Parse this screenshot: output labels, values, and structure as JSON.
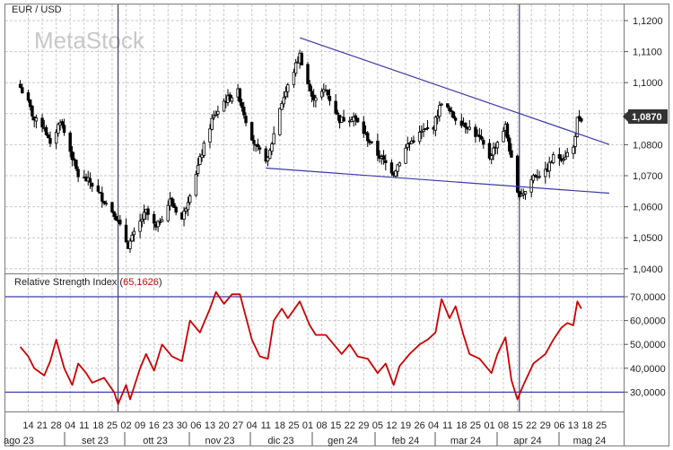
{
  "watermark": "MetaStock",
  "colors": {
    "candle": "#000000",
    "trendline": "#3a3aa6",
    "rsi_line": "#cc0000",
    "rsi_value": "#cc0000",
    "rsi_bands": "#3a3aa6",
    "grid": "#c9c9c9",
    "last_price_bg": "#333333"
  },
  "chart_data": [
    {
      "type": "candlestick",
      "title": "EUR / USD",
      "ylim": [
        1.04,
        1.12
      ],
      "y_ticks": [
        "1,1200",
        "1,1100",
        "1,1000",
        "1,0900",
        "1,0800",
        "1,0700",
        "1,0600",
        "1,0500",
        "1,0400"
      ],
      "last_price_label": "1,0870",
      "grid": true,
      "x_tick_labels": [
        "14",
        "21",
        "28",
        "04",
        "11",
        "18",
        "25",
        "02",
        "09",
        "16",
        "23",
        "30",
        "06",
        "13",
        "20",
        "27",
        "04",
        "11",
        "18",
        "25",
        "01",
        "08",
        "15",
        "22",
        "29",
        "05",
        "12",
        "19",
        "26",
        "04",
        "11",
        "18",
        "25",
        "01",
        "08",
        "15",
        "22",
        "29",
        "06",
        "13",
        "18",
        "25"
      ],
      "month_labels": [
        "ago 23",
        "set 23",
        "ott 23",
        "nov 23",
        "dic 23",
        "gen 24",
        "feb 24",
        "mar 24",
        "apr 24",
        "mag 24"
      ],
      "close_path": [
        [
          "2023-08-10",
          1.0985
        ],
        [
          "2023-08-14",
          1.0935
        ],
        [
          "2023-08-17",
          1.088
        ],
        [
          "2023-08-22",
          1.086
        ],
        [
          "2023-08-25",
          1.0795
        ],
        [
          "2023-08-30",
          1.088
        ],
        [
          "2023-09-04",
          1.078
        ],
        [
          "2023-09-08",
          1.07
        ],
        [
          "2023-09-14",
          1.068
        ],
        [
          "2023-09-21",
          1.062
        ],
        [
          "2023-09-26",
          1.058
        ],
        [
          "2023-10-03",
          1.0475
        ],
        [
          "2023-10-09",
          1.055
        ],
        [
          "2023-10-12",
          1.0585
        ],
        [
          "2023-10-17",
          1.053
        ],
        [
          "2023-10-24",
          1.062
        ],
        [
          "2023-10-30",
          1.056
        ],
        [
          "2023-11-06",
          1.071
        ],
        [
          "2023-11-14",
          1.088
        ],
        [
          "2023-11-20",
          1.094
        ],
        [
          "2023-11-27",
          1.097
        ],
        [
          "2023-12-01",
          1.088
        ],
        [
          "2023-12-06",
          1.079
        ],
        [
          "2023-12-12",
          1.075
        ],
        [
          "2023-12-18",
          1.092
        ],
        [
          "2023-12-28",
          1.109
        ],
        [
          "2024-01-03",
          1.095
        ],
        [
          "2024-01-10",
          1.0975
        ],
        [
          "2024-01-17",
          1.088
        ],
        [
          "2024-01-24",
          1.089
        ],
        [
          "2024-01-31",
          1.082
        ],
        [
          "2024-02-05",
          1.077
        ],
        [
          "2024-02-13",
          1.071
        ],
        [
          "2024-02-20",
          1.08
        ],
        [
          "2024-02-27",
          1.084
        ],
        [
          "2024-03-04",
          1.086
        ],
        [
          "2024-03-08",
          1.094
        ],
        [
          "2024-03-14",
          1.089
        ],
        [
          "2024-03-21",
          1.086
        ],
        [
          "2024-03-27",
          1.082
        ],
        [
          "2024-04-01",
          1.076
        ],
        [
          "2024-04-09",
          1.086
        ],
        [
          "2024-04-15",
          1.064
        ],
        [
          "2024-04-19",
          1.065
        ],
        [
          "2024-04-23",
          1.07
        ],
        [
          "2024-04-29",
          1.071
        ],
        [
          "2024-05-03",
          1.076
        ],
        [
          "2024-05-08",
          1.076
        ],
        [
          "2024-05-13",
          1.079
        ],
        [
          "2024-05-15",
          1.088
        ],
        [
          "2024-05-17",
          1.087
        ]
      ],
      "trendlines": [
        {
          "points": [
            [
              "2023-12-28",
              1.1145
            ],
            [
              "2024-05-31",
              1.0801
            ]
          ]
        },
        {
          "points": [
            [
              "2023-12-11",
              1.0725
            ],
            [
              "2024-05-31",
              1.0644
            ]
          ]
        }
      ],
      "vertical_markers": [
        "2023-09-28",
        "2024-04-16"
      ]
    },
    {
      "type": "line",
      "title": "Relative Strength Index",
      "value_label": "65,1626",
      "ylim": [
        20000,
        73000
      ],
      "y_ticks": [
        "70,0000",
        "60,0000",
        "50,0000",
        "40,0000",
        "30,0000"
      ],
      "bands": [
        30,
        70
      ],
      "values": [
        [
          "2023-08-10",
          49
        ],
        [
          "2023-08-14",
          45
        ],
        [
          "2023-08-17",
          40
        ],
        [
          "2023-08-22",
          37
        ],
        [
          "2023-08-25",
          43
        ],
        [
          "2023-08-28",
          52
        ],
        [
          "2023-09-01",
          40
        ],
        [
          "2023-09-05",
          33
        ],
        [
          "2023-09-08",
          42
        ],
        [
          "2023-09-12",
          38
        ],
        [
          "2023-09-15",
          34
        ],
        [
          "2023-09-21",
          36
        ],
        [
          "2023-09-26",
          30
        ],
        [
          "2023-09-28",
          25
        ],
        [
          "2023-10-02",
          33
        ],
        [
          "2023-10-04",
          27
        ],
        [
          "2023-10-09",
          40
        ],
        [
          "2023-10-12",
          46
        ],
        [
          "2023-10-16",
          39
        ],
        [
          "2023-10-20",
          50
        ],
        [
          "2023-10-25",
          45
        ],
        [
          "2023-10-30",
          43
        ],
        [
          "2023-11-03",
          60
        ],
        [
          "2023-11-08",
          55
        ],
        [
          "2023-11-13",
          65
        ],
        [
          "2023-11-16",
          72
        ],
        [
          "2023-11-20",
          67
        ],
        [
          "2023-11-24",
          71
        ],
        [
          "2023-11-28",
          71
        ],
        [
          "2023-12-04",
          52
        ],
        [
          "2023-12-08",
          45
        ],
        [
          "2023-12-12",
          44
        ],
        [
          "2023-12-15",
          60
        ],
        [
          "2023-12-19",
          65
        ],
        [
          "2023-12-22",
          61
        ],
        [
          "2023-12-28",
          68
        ],
        [
          "2024-01-02",
          58
        ],
        [
          "2024-01-05",
          54
        ],
        [
          "2024-01-10",
          54
        ],
        [
          "2024-01-15",
          49
        ],
        [
          "2024-01-18",
          46
        ],
        [
          "2024-01-22",
          50
        ],
        [
          "2024-01-26",
          45
        ],
        [
          "2024-01-31",
          44
        ],
        [
          "2024-02-05",
          38
        ],
        [
          "2024-02-09",
          42
        ],
        [
          "2024-02-13",
          33
        ],
        [
          "2024-02-16",
          41
        ],
        [
          "2024-02-21",
          46
        ],
        [
          "2024-02-26",
          50
        ],
        [
          "2024-03-01",
          52
        ],
        [
          "2024-03-05",
          55
        ],
        [
          "2024-03-08",
          69
        ],
        [
          "2024-03-12",
          61
        ],
        [
          "2024-03-15",
          66
        ],
        [
          "2024-03-19",
          54
        ],
        [
          "2024-03-22",
          46
        ],
        [
          "2024-03-27",
          44
        ],
        [
          "2024-04-02",
          38
        ],
        [
          "2024-04-05",
          46
        ],
        [
          "2024-04-09",
          53
        ],
        [
          "2024-04-12",
          35
        ],
        [
          "2024-04-15",
          27
        ],
        [
          "2024-04-18",
          33
        ],
        [
          "2024-04-23",
          42
        ],
        [
          "2024-04-29",
          46
        ],
        [
          "2024-05-03",
          52
        ],
        [
          "2024-05-07",
          57
        ],
        [
          "2024-05-10",
          59
        ],
        [
          "2024-05-13",
          58
        ],
        [
          "2024-05-15",
          68
        ],
        [
          "2024-05-17",
          65
        ]
      ]
    }
  ]
}
